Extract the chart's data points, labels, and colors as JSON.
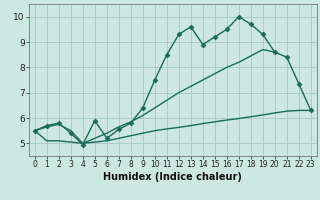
{
  "xlabel": "Humidex (Indice chaleur)",
  "x_values": [
    0,
    1,
    2,
    3,
    4,
    5,
    6,
    7,
    8,
    9,
    10,
    11,
    12,
    13,
    14,
    15,
    16,
    17,
    18,
    19,
    20,
    21,
    22,
    23
  ],
  "line1_y": [
    5.5,
    5.7,
    5.8,
    5.4,
    4.95,
    5.9,
    5.2,
    5.55,
    5.8,
    6.4,
    7.5,
    8.5,
    9.3,
    9.6,
    8.9,
    9.2,
    9.5,
    10.0,
    9.7,
    9.3,
    8.6,
    8.4,
    7.35,
    6.3
  ],
  "line2_y": [
    5.5,
    5.65,
    5.75,
    5.5,
    5.0,
    5.2,
    5.4,
    5.65,
    5.85,
    6.1,
    6.4,
    6.7,
    7.0,
    7.25,
    7.5,
    7.75,
    8.0,
    8.2,
    8.45,
    8.7,
    8.6,
    null,
    null,
    null
  ],
  "line3_y": [
    5.5,
    5.1,
    5.1,
    5.05,
    5.0,
    5.05,
    5.1,
    5.2,
    5.3,
    5.4,
    5.5,
    5.57,
    5.63,
    5.7,
    5.78,
    5.85,
    5.92,
    5.98,
    6.05,
    6.12,
    6.2,
    6.27,
    6.3,
    6.3
  ],
  "ylim": [
    4.5,
    10.5
  ],
  "xlim": [
    -0.5,
    23.5
  ],
  "line_color": "#1a6b5a",
  "bg_color": "#cce8e0",
  "grid_color": "#aacfc8",
  "marker": "D",
  "marker_size": 2.5,
  "linewidth": 1.0,
  "yticks": [
    5,
    6,
    7,
    8,
    9,
    10
  ],
  "xticks": [
    0,
    1,
    2,
    3,
    4,
    5,
    6,
    7,
    8,
    9,
    10,
    11,
    12,
    13,
    14,
    15,
    16,
    17,
    18,
    19,
    20,
    21,
    22,
    23
  ],
  "xlabel_fontsize": 7,
  "tick_fontsize": 5.5,
  "ytick_fontsize": 6.5
}
